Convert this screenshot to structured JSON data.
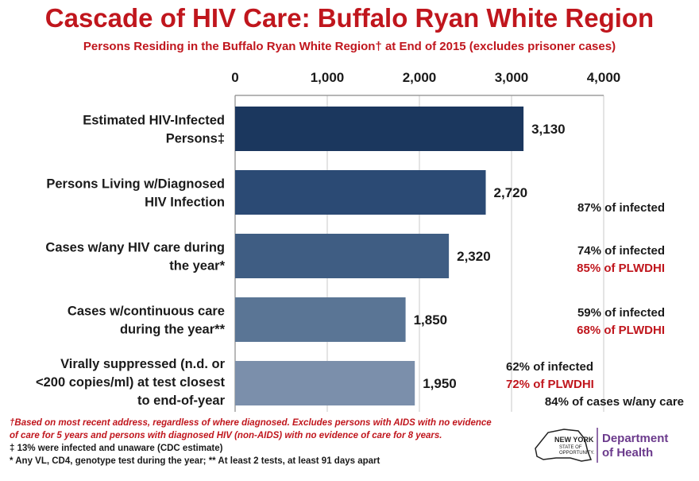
{
  "header": {
    "title": "Cascade of HIV Care: Buffalo Ryan White Region",
    "subtitle": "Persons Residing in the Buffalo Ryan White Region† at End of 2015 (excludes prisoner cases)"
  },
  "chart_data": {
    "type": "bar",
    "orientation": "horizontal",
    "xlim": [
      0,
      4000
    ],
    "x_ticks": [
      "0",
      "1,000",
      "2,000",
      "3,000",
      "4,000"
    ],
    "x_tick_values": [
      0,
      1000,
      2000,
      3000,
      4000
    ],
    "grid": true,
    "categories": [
      [
        "Estimated HIV-Infected",
        "Persons‡"
      ],
      [
        "Persons Living w/Diagnosed",
        "HIV Infection"
      ],
      [
        "Cases w/any HIV care during",
        "the year*"
      ],
      [
        "Cases w/continuous care",
        "during the year**"
      ],
      [
        "Virally suppressed (n.d. or",
        "<200 copies/ml) at test closest",
        "to end-of-year"
      ]
    ],
    "values": [
      3130,
      2720,
      2320,
      1850,
      1950
    ],
    "value_labels": [
      "3,130",
      "2,720",
      "2,320",
      "1,850",
      "1,950"
    ],
    "bar_colors": [
      "#1b375e",
      "#2b4a74",
      "#3f5d83",
      "#5a7595",
      "#7b8fab"
    ],
    "annotations": [
      [],
      [
        {
          "text": "87% of infected",
          "color": "#1a1a1a"
        }
      ],
      [
        {
          "text": "74% of infected",
          "color": "#1a1a1a"
        },
        {
          "text": "85% of PLWDHI",
          "color": "#c0161d"
        }
      ],
      [
        {
          "text": "59% of infected",
          "color": "#1a1a1a"
        },
        {
          "text": "68% of PLWDHI",
          "color": "#c0161d"
        }
      ],
      [
        {
          "text": "62% of infected",
          "color": "#1a1a1a"
        },
        {
          "text": "72% of PLWDHI",
          "color": "#c0161d"
        },
        {
          "text": "84% of cases w/any care",
          "color": "#1a1a1a"
        }
      ]
    ]
  },
  "footnotes": {
    "line1": "†Based on most recent address, regardless of where diagnosed. Excludes persons with AIDS with no evidence",
    "line2": "of care for 5 years and persons with diagnosed HIV (non-AIDS) with no evidence of care for 8 years.",
    "line3": "‡ 13% were infected and unaware (CDC estimate)",
    "line4": "* Any VL, CD4, genotype test during the year; ** At least 2 tests, at least 91 days apart"
  },
  "logo": {
    "state_line1": "NEW YORK",
    "state_line2": "STATE OF",
    "state_line3": "OPPORTUNITY.",
    "dept_line1": "Department",
    "dept_line2": "of Health",
    "dept_color": "#6b3a8c"
  }
}
